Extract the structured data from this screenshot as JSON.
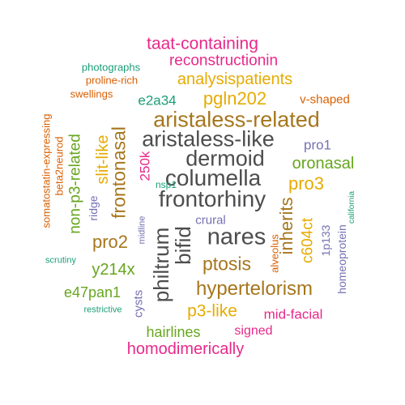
{
  "palette": {
    "dark_gray": "#4d4d4d",
    "brown": "#a6761d",
    "gold": "#e6ab02",
    "green": "#66a61e",
    "teal": "#1b9e77",
    "orange": "#d95f02",
    "magenta": "#e7298a",
    "purple": "#7570b3"
  },
  "words": [
    {
      "text": "taat-containing",
      "color": "magenta"
    },
    {
      "text": "reconstructionin",
      "color": "magenta"
    },
    {
      "text": "photographs",
      "color": "teal"
    },
    {
      "text": "proline-rich",
      "color": "orange"
    },
    {
      "text": "analysispatients",
      "color": "gold"
    },
    {
      "text": "swellings",
      "color": "orange"
    },
    {
      "text": "e2a34",
      "color": "teal"
    },
    {
      "text": "pgln202",
      "color": "gold"
    },
    {
      "text": "v-shaped",
      "color": "orange"
    },
    {
      "text": "aristaless-related",
      "color": "brown"
    },
    {
      "text": "aristaless-like",
      "color": "dark_gray"
    },
    {
      "text": "pro1",
      "color": "purple"
    },
    {
      "text": "dermoid",
      "color": "dark_gray"
    },
    {
      "text": "oronasal",
      "color": "green"
    },
    {
      "text": "columella",
      "color": "dark_gray"
    },
    {
      "text": "pro3",
      "color": "gold"
    },
    {
      "text": "nsp1",
      "color": "teal"
    },
    {
      "text": "frontorhiny",
      "color": "dark_gray"
    },
    {
      "text": "crural",
      "color": "purple"
    },
    {
      "text": "nares",
      "color": "dark_gray"
    },
    {
      "text": "pro2",
      "color": "brown"
    },
    {
      "text": "ptosis",
      "color": "brown"
    },
    {
      "text": "y214x",
      "color": "green"
    },
    {
      "text": "scrutiny",
      "color": "teal"
    },
    {
      "text": "hypertelorism",
      "color": "brown"
    },
    {
      "text": "e47pan1",
      "color": "green"
    },
    {
      "text": "p3-like",
      "color": "gold"
    },
    {
      "text": "mid-facial",
      "color": "magenta"
    },
    {
      "text": "restrictive",
      "color": "teal"
    },
    {
      "text": "hairlines",
      "color": "green"
    },
    {
      "text": "signed",
      "color": "magenta"
    },
    {
      "text": "homodimerically",
      "color": "magenta"
    },
    {
      "text": "somatostatin-expressing",
      "color": "orange"
    },
    {
      "text": "beta2neurod",
      "color": "orange"
    },
    {
      "text": "non-p3-related",
      "color": "green"
    },
    {
      "text": "ridge",
      "color": "purple"
    },
    {
      "text": "slit-like",
      "color": "gold"
    },
    {
      "text": "frontonasal",
      "color": "brown"
    },
    {
      "text": "250k",
      "color": "magenta"
    },
    {
      "text": "midline",
      "color": "purple"
    },
    {
      "text": "philtrum",
      "color": "dark_gray"
    },
    {
      "text": "cysts",
      "color": "purple"
    },
    {
      "text": "bifid",
      "color": "dark_gray"
    },
    {
      "text": "inherits",
      "color": "brown"
    },
    {
      "text": "alveolus",
      "color": "orange"
    },
    {
      "text": "c604ct",
      "color": "gold"
    },
    {
      "text": "1p133",
      "color": "purple"
    },
    {
      "text": "homeoprotein",
      "color": "purple"
    },
    {
      "text": "california",
      "color": "teal"
    }
  ]
}
